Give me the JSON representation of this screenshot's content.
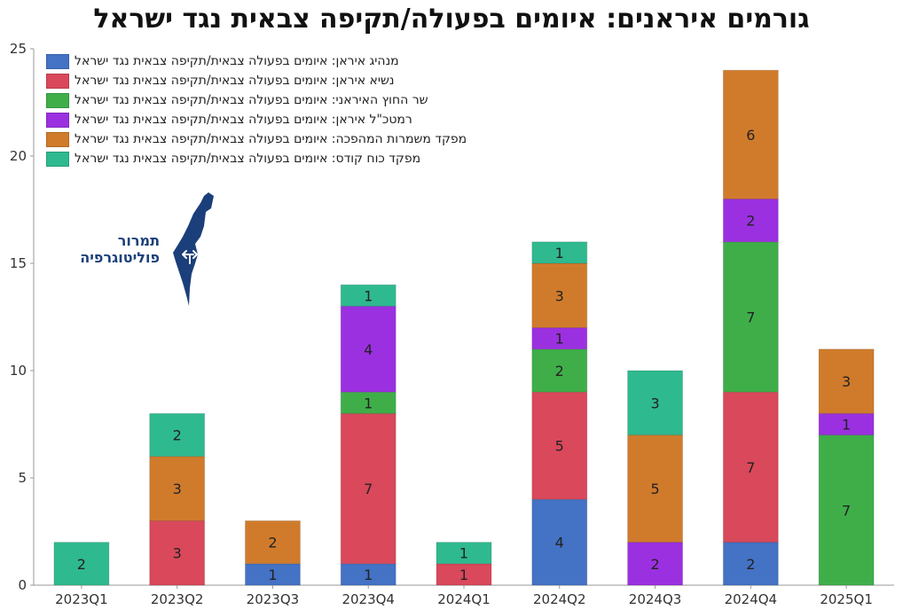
{
  "chart_data": {
    "type": "bar",
    "stacked": true,
    "title": "גורמים איראנים: איומים בפעולה/תקיפה צבאית נגד ישראל",
    "categories": [
      "2023Q1",
      "2023Q2",
      "2023Q3",
      "2023Q4",
      "2024Q1",
      "2024Q2",
      "2024Q3",
      "2024Q4",
      "2025Q1"
    ],
    "ylim": [
      0,
      25
    ],
    "yticks": [
      0,
      5,
      10,
      15,
      20,
      25
    ],
    "grid": false,
    "legend_position": "top-left",
    "series": [
      {
        "name": "מנהיג איראן: איומים בפעולה צבאית/תקיפה צבאית נגד ישראל",
        "color": "#4472c4",
        "values": [
          0,
          0,
          1,
          1,
          0,
          4,
          0,
          2,
          0
        ]
      },
      {
        "name": "נשיא איראן: איומים בפעולה צבאית/תקיפה צבאית נגד ישראל",
        "color": "#d9485b",
        "values": [
          0,
          3,
          0,
          7,
          1,
          5,
          0,
          7,
          0
        ]
      },
      {
        "name": "שר החוץ האיראני: איומים בפעולה צבאית/תקיפה צבאית נגד ישראל",
        "color": "#3fae49",
        "values": [
          0,
          0,
          0,
          1,
          0,
          2,
          0,
          7,
          7
        ]
      },
      {
        "name": "רמטכ\"ל איראן: איומים בפעולה צבאית/תקיפה צבאית נגד ישראל",
        "color": "#9b30e0",
        "values": [
          0,
          0,
          0,
          4,
          0,
          1,
          2,
          2,
          1
        ]
      },
      {
        "name": "מפקד משמרות המהפכה: איומים בפעולה צבאית/תקיפה צבאית נגד ישראל",
        "color": "#d07b2c",
        "values": [
          0,
          3,
          2,
          0,
          0,
          3,
          5,
          6,
          3
        ]
      },
      {
        "name": "מפקד כוח קודס: איומים בפעולה צבאית/תקיפה צבאית נגד ישראל",
        "color": "#2fb98f",
        "values": [
          2,
          2,
          0,
          1,
          1,
          1,
          3,
          0,
          0
        ]
      }
    ]
  },
  "logo": {
    "line1": "תמרור",
    "line2": "פוליטוגרפיה",
    "color": "#1b3f7a"
  }
}
